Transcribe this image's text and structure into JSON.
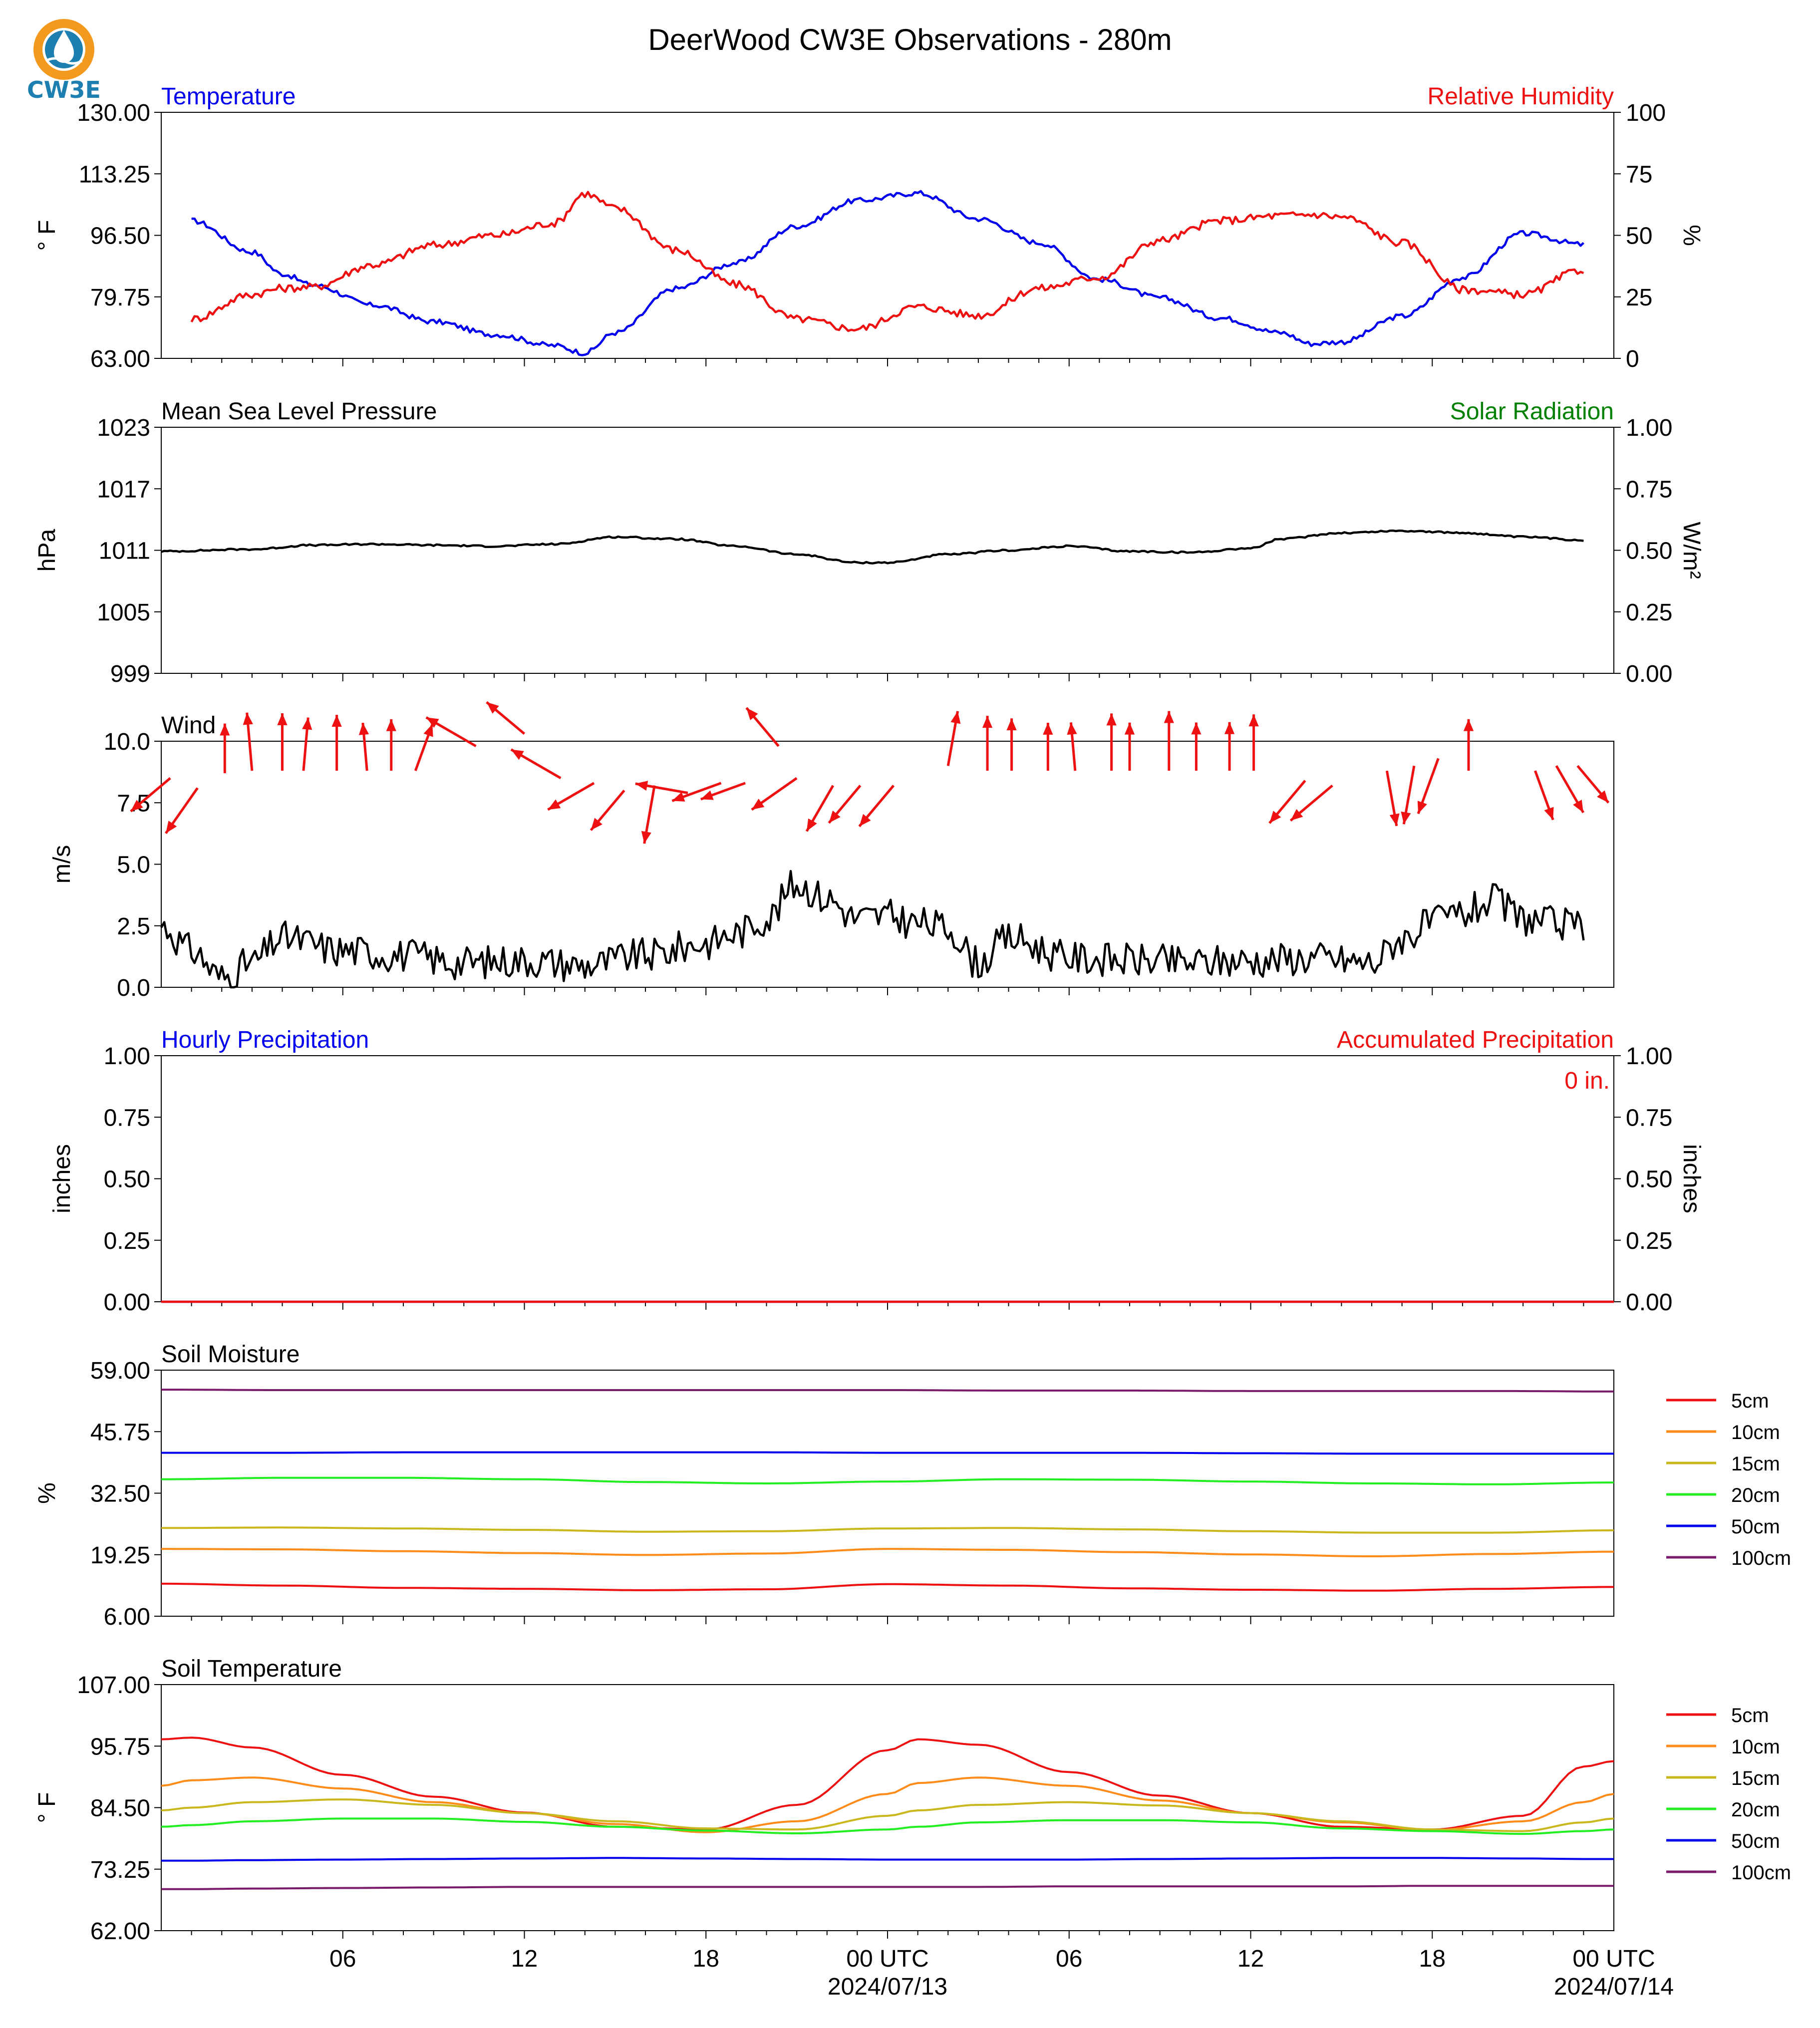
{
  "title": "DeerWood CW3E Observations - 280m",
  "logo": {
    "text": "CW3E",
    "icon": "cw3e-water-drop-logo",
    "colors": [
      "#f39a1e",
      "#1c7fb0"
    ]
  },
  "x_axis": {
    "tick_labels": [
      "06",
      "12",
      "18",
      "00 UTC",
      "06",
      "12",
      "18",
      "00 UTC"
    ],
    "date_labels": [
      "2024/07/13",
      "2024/07/14"
    ]
  },
  "chart_data": [
    {
      "id": "temp_rh",
      "type": "line",
      "left_title": "Temperature",
      "right_title": "Relative Humidity",
      "ylabel": "° F",
      "y2label": "%",
      "ylim": [
        63.0,
        130.0
      ],
      "y2lim": [
        0,
        100
      ],
      "yticks": [
        "130.00",
        "113.25",
        "96.50",
        "79.75",
        "63.00"
      ],
      "y2ticks": [
        "100",
        "75",
        "50",
        "25",
        "0"
      ],
      "x_hours": [
        1,
        3,
        4,
        5,
        7,
        9,
        11,
        13,
        14,
        15,
        17,
        19,
        21,
        23,
        25,
        27,
        29,
        31,
        33,
        35,
        37,
        38,
        39,
        41,
        43,
        45,
        47
      ],
      "series": [
        {
          "axis": "left",
          "color": "#0000ee",
          "values": [
            100.5,
            92,
            86,
            83,
            77.5,
            73,
            69.5,
            66.5,
            64.5,
            70,
            82,
            89,
            99,
            106,
            108,
            101,
            94.5,
            84.5,
            79.5,
            74,
            70,
            67,
            67.5,
            74.5,
            85,
            97,
            94
          ]
        },
        {
          "axis": "right",
          "color": "#ee1111",
          "values": [
            16,
            26,
            28.5,
            29,
            38,
            46,
            50,
            55,
            67,
            61,
            44,
            30,
            16,
            12,
            21,
            17.5,
            28.5,
            33,
            48,
            56,
            58,
            58.5,
            57.5,
            47,
            28,
            26,
            36
          ]
        }
      ]
    },
    {
      "id": "pressure",
      "type": "line",
      "left_title": "Mean Sea Level Pressure",
      "right_title": "Solar Radiation",
      "ylabel": "hPa",
      "y2label": "W/m²",
      "ylim": [
        999,
        1023
      ],
      "y2lim": [
        0,
        1
      ],
      "yticks": [
        "1023",
        "1017",
        "1011",
        "1005",
        "999"
      ],
      "y2ticks": [
        "1.00",
        "0.75",
        "0.50",
        "0.25",
        "0.00"
      ],
      "x_hours": [
        0,
        3,
        5,
        7,
        9,
        11,
        13,
        15,
        17,
        19,
        21,
        23,
        24,
        26,
        28,
        30,
        32,
        34,
        36,
        37,
        39,
        41,
        43,
        45,
        47
      ],
      "series": [
        {
          "axis": "left",
          "color": "#000000",
          "values": [
            1010.9,
            1011.1,
            1011.5,
            1011.6,
            1011.5,
            1011.4,
            1011.6,
            1012.3,
            1012.1,
            1011.4,
            1010.6,
            1009.8,
            1009.8,
            1010.6,
            1011.0,
            1011.4,
            1010.9,
            1010.8,
            1011.2,
            1012.1,
            1012.7,
            1012.9,
            1012.7,
            1012.3,
            1012.0
          ]
        }
      ]
    },
    {
      "id": "wind",
      "type": "line",
      "left_title": "Wind",
      "ylabel": "m/s",
      "ylim": [
        0,
        10
      ],
      "yticks": [
        "10.0",
        "7.5",
        "5.0",
        "2.5",
        "0.0"
      ],
      "x_hours": [
        0,
        1,
        2,
        3,
        4,
        6,
        8,
        10,
        12,
        14,
        16,
        18,
        19,
        20,
        21,
        22,
        23,
        24,
        25,
        26,
        27,
        28,
        30,
        32,
        34,
        36,
        38,
        40,
        41,
        42,
        43,
        44,
        45,
        46,
        47
      ],
      "series": [
        {
          "axis": "left",
          "color": "#000000",
          "values": [
            2.5,
            1.5,
            0.4,
            1.0,
            2.0,
            1.5,
            1.3,
            1.0,
            1.1,
            0.9,
            1.3,
            1.8,
            2.2,
            2.8,
            4.2,
            3.6,
            2.8,
            2.9,
            2.6,
            2.4,
            1.0,
            2.0,
            1.2,
            1.1,
            1.0,
            1.1,
            1.2,
            1.0,
            2.0,
            2.6,
            3.0,
            3.5,
            2.8,
            2.6,
            2.4
          ]
        }
      ],
      "wind_direction_arrows": {
        "color": "#ee1111",
        "note": "hourly wind direction vectors"
      }
    },
    {
      "id": "precip",
      "type": "line",
      "left_title": "Hourly Precipitation",
      "right_title": "Accumulated Precipitation",
      "ylabel": "inches",
      "y2label": "inches",
      "ylim": [
        0,
        1
      ],
      "y2lim": [
        0,
        1
      ],
      "yticks": [
        "1.00",
        "0.75",
        "0.50",
        "0.25",
        "0.00"
      ],
      "y2ticks": [
        "1.00",
        "0.75",
        "0.50",
        "0.25",
        "0.00"
      ],
      "accumulated_total": "0 in.",
      "x_hours": [
        0,
        48
      ],
      "series": [
        {
          "axis": "left",
          "color": "#0000ee",
          "values": [
            0,
            0
          ]
        },
        {
          "axis": "right",
          "color": "#ee1111",
          "values": [
            0,
            0
          ]
        }
      ]
    },
    {
      "id": "soil_moisture",
      "type": "line",
      "left_title": "Soil Moisture",
      "ylabel": "%",
      "ylim": [
        6.0,
        59.0
      ],
      "yticks": [
        "59.00",
        "45.75",
        "32.50",
        "19.25",
        "6.00"
      ],
      "x_hours": [
        0,
        4,
        8,
        12,
        16,
        20,
        24,
        28,
        32,
        36,
        40,
        44,
        48
      ],
      "legend": [
        "5cm",
        "10cm",
        "15cm",
        "20cm",
        "50cm",
        "100cm"
      ],
      "series": [
        {
          "name": "5cm",
          "color": "#ee1111",
          "values": [
            13.0,
            12.6,
            12.1,
            11.9,
            11.6,
            11.8,
            12.9,
            12.6,
            12.0,
            11.7,
            11.5,
            11.9,
            12.3
          ]
        },
        {
          "name": "10cm",
          "color": "#ff8c1a",
          "values": [
            20.5,
            20.4,
            20.0,
            19.6,
            19.2,
            19.5,
            20.5,
            20.3,
            19.8,
            19.3,
            18.9,
            19.4,
            19.9
          ]
        },
        {
          "name": "15cm",
          "color": "#c8b81e",
          "values": [
            25.0,
            25.1,
            24.9,
            24.6,
            24.2,
            24.3,
            24.9,
            25.0,
            24.7,
            24.3,
            24.0,
            24.0,
            24.5
          ]
        },
        {
          "name": "20cm",
          "color": "#22ee22",
          "values": [
            35.5,
            35.8,
            35.8,
            35.5,
            34.9,
            34.6,
            35.0,
            35.5,
            35.4,
            35.0,
            34.6,
            34.4,
            34.8
          ]
        },
        {
          "name": "50cm",
          "color": "#0000ee",
          "values": [
            41.2,
            41.2,
            41.3,
            41.3,
            41.3,
            41.3,
            41.2,
            41.2,
            41.2,
            41.1,
            41.0,
            41.0,
            41.0
          ]
        },
        {
          "name": "100cm",
          "color": "#7a1a6a",
          "values": [
            54.8,
            54.7,
            54.7,
            54.7,
            54.7,
            54.7,
            54.7,
            54.6,
            54.6,
            54.5,
            54.5,
            54.5,
            54.4
          ]
        }
      ]
    },
    {
      "id": "soil_temp",
      "type": "line",
      "left_title": "Soil Temperature",
      "ylabel": "° F",
      "ylim": [
        62.0,
        107.0
      ],
      "yticks": [
        "107.00",
        "95.75",
        "84.50",
        "73.25",
        "62.00"
      ],
      "x_hours": [
        0,
        1,
        3,
        6,
        9,
        12,
        15,
        18,
        21,
        24,
        25,
        27,
        30,
        33,
        36,
        39,
        42,
        45,
        47,
        48
      ],
      "legend": [
        "5cm",
        "10cm",
        "15cm",
        "20cm",
        "50cm",
        "100cm"
      ],
      "series": [
        {
          "name": "5cm",
          "color": "#ee1111",
          "values": [
            97.0,
            97.3,
            95.5,
            90.5,
            86.5,
            83.6,
            81.0,
            80.5,
            85.0,
            95.0,
            97.0,
            96.0,
            91.0,
            86.7,
            83.5,
            81.0,
            80.5,
            83.0,
            92.0,
            93.0
          ]
        },
        {
          "name": "10cm",
          "color": "#ff8c1a",
          "values": [
            88.5,
            89.5,
            90.0,
            88.0,
            85.5,
            83.5,
            81.5,
            80.0,
            82.0,
            87.0,
            89.0,
            90.0,
            88.5,
            85.8,
            83.5,
            81.8,
            80.4,
            82.0,
            85.5,
            87.0
          ]
        },
        {
          "name": "15cm",
          "color": "#c8b81e",
          "values": [
            84.0,
            84.5,
            85.5,
            86.0,
            85.0,
            83.5,
            82.0,
            80.7,
            80.5,
            83.0,
            84.0,
            85.0,
            85.5,
            84.9,
            83.5,
            82.0,
            80.5,
            80.2,
            81.8,
            82.5
          ]
        },
        {
          "name": "20cm",
          "color": "#22ee22",
          "values": [
            81.0,
            81.3,
            82.0,
            82.5,
            82.5,
            81.9,
            81.0,
            80.3,
            79.8,
            80.5,
            81.0,
            81.8,
            82.2,
            82.2,
            81.8,
            80.7,
            80.2,
            79.7,
            80.2,
            80.5
          ]
        },
        {
          "name": "50cm",
          "color": "#0000ee",
          "values": [
            74.8,
            74.8,
            74.9,
            75.0,
            75.1,
            75.2,
            75.3,
            75.2,
            75.1,
            75.0,
            75.0,
            75.0,
            75.0,
            75.1,
            75.2,
            75.3,
            75.3,
            75.2,
            75.1,
            75.1
          ]
        },
        {
          "name": "100cm",
          "color": "#7a1a6a",
          "values": [
            69.6,
            69.6,
            69.7,
            69.8,
            69.9,
            70.0,
            70.0,
            70.0,
            70.0,
            70.0,
            70.0,
            70.0,
            70.1,
            70.1,
            70.1,
            70.1,
            70.2,
            70.2,
            70.2,
            70.2
          ]
        }
      ]
    }
  ]
}
